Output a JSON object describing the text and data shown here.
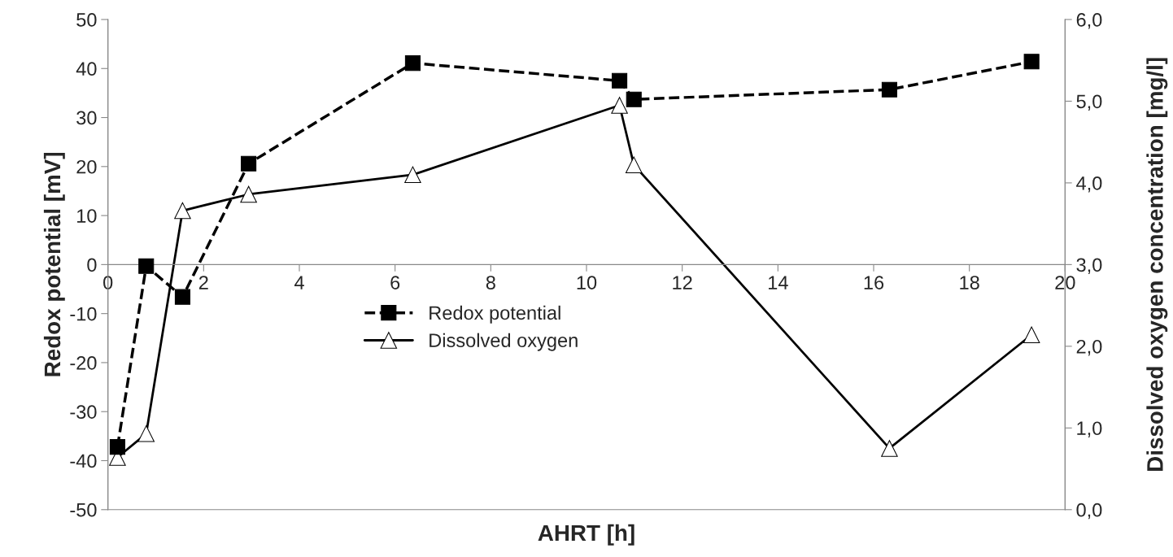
{
  "chart_data": {
    "type": "line",
    "xlabel": "AHRT [h]",
    "ylabel": "Redox potential [mV]",
    "y2label": "Dissolved oxygen concentration [mg/l]",
    "series": [
      {
        "name": "Redox potential",
        "color": "#000000",
        "marker": "square",
        "line_style": "dashed",
        "x": [
          0.2,
          0.8,
          1.56,
          2.94,
          6.37,
          10.69,
          10.99,
          16.33,
          19.3
        ],
        "values": [
          -37.2,
          -0.3,
          -6.6,
          20.6,
          41.1,
          37.5,
          33.7,
          35.7,
          41.4
        ]
      },
      {
        "name": "Dissolved oxygen",
        "color": "#000000",
        "marker": "triangle",
        "line_style": "solid",
        "axis": "y2",
        "x": [
          0.2,
          0.8,
          1.56,
          2.94,
          6.37,
          10.69,
          10.99,
          16.33,
          19.3
        ],
        "values": [
          0.64,
          0.93,
          3.66,
          3.86,
          4.1,
          4.95,
          4.22,
          0.75,
          2.14
        ]
      }
    ],
    "xlim": [
      0,
      20
    ],
    "xticks": [
      0,
      2,
      4,
      6,
      8,
      10,
      12,
      14,
      16,
      18,
      20
    ],
    "ylim": [
      -50,
      50
    ],
    "yticks": [
      -50,
      -40,
      -30,
      -20,
      -10,
      0,
      10,
      20,
      30,
      40,
      50
    ],
    "y2lim": [
      0,
      6
    ],
    "y2ticks": [
      {
        "value": 0,
        "label": "0,0"
      },
      {
        "value": 1,
        "label": "1,0"
      },
      {
        "value": 2,
        "label": "2,0"
      },
      {
        "value": 3,
        "label": "3,0"
      },
      {
        "value": 4,
        "label": "4,0"
      },
      {
        "value": 5,
        "label": "5,0"
      },
      {
        "value": 6,
        "label": "6,0"
      }
    ],
    "grid": false,
    "legend": "center"
  }
}
